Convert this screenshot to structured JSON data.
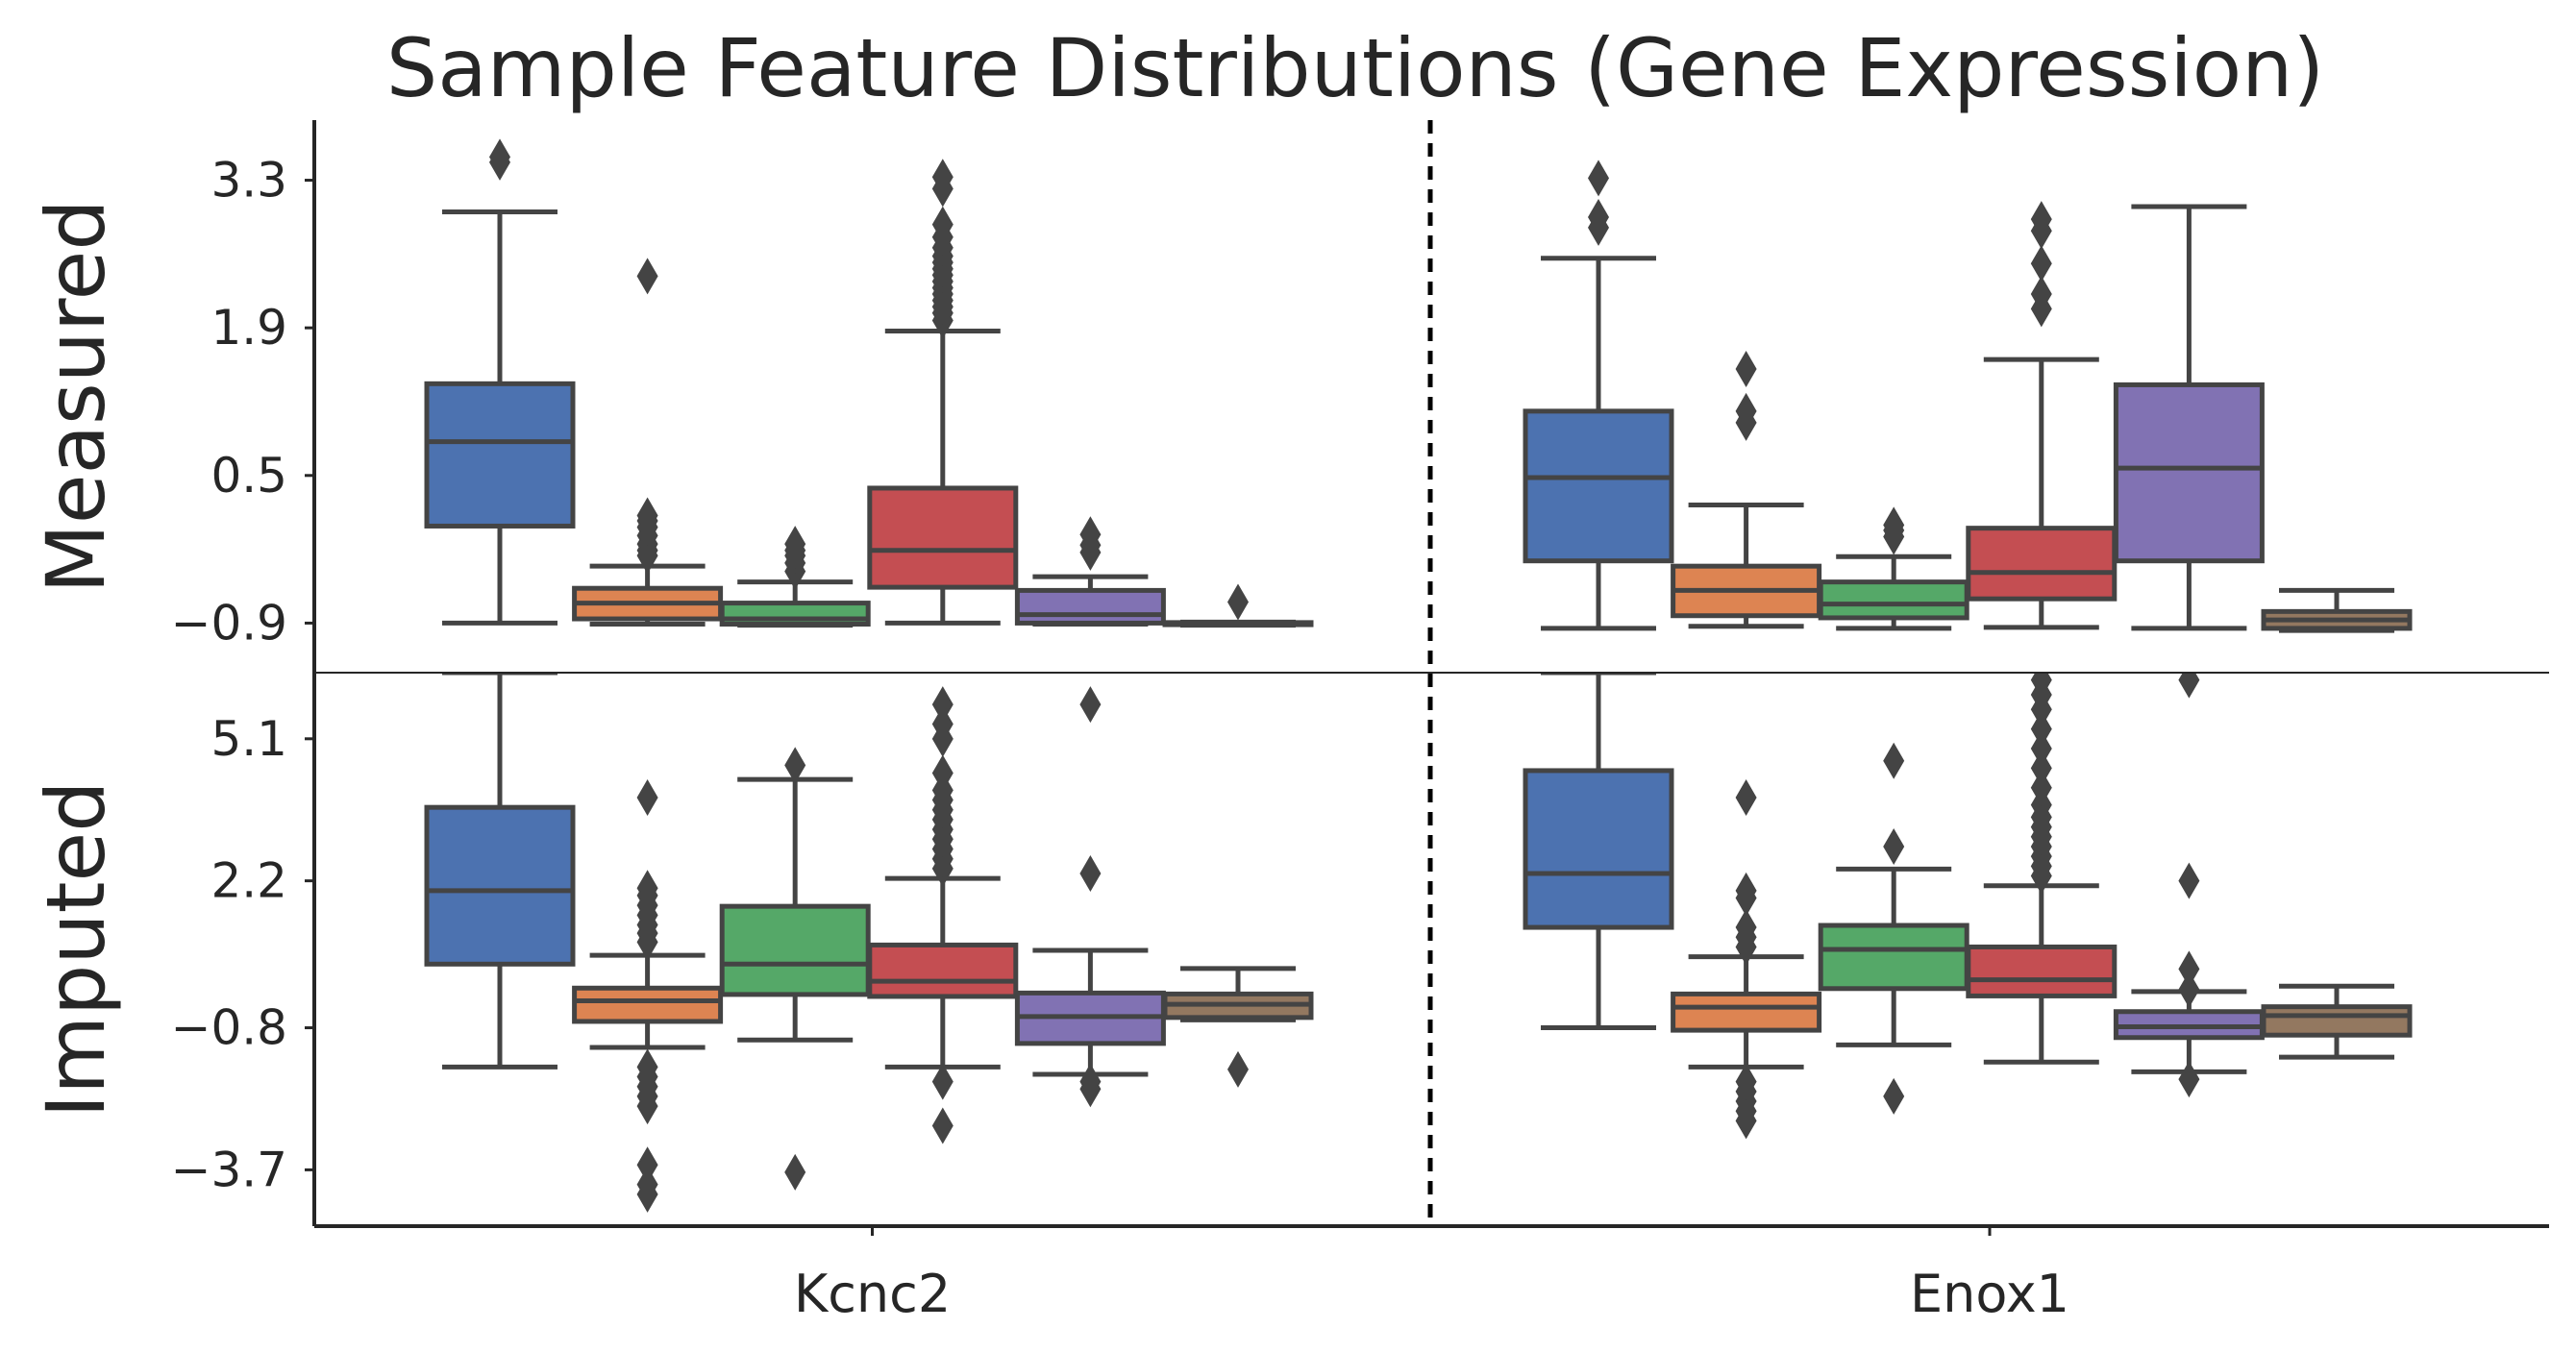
{
  "chart_data": {
    "type": "box",
    "title": "Sample Feature Distributions (Gene Expression)",
    "categories": [
      "Kcnc2",
      "Enox1"
    ],
    "box_colors": [
      "#4c72b0",
      "#dd8452",
      "#55a868",
      "#c44e52",
      "#8172b3",
      "#937860"
    ],
    "edge_color": "#444444",
    "grid": false,
    "rows": [
      {
        "label": "Measured",
        "yticks": [
          3.3,
          1.9,
          0.5,
          -0.9
        ],
        "ytick_labels": [
          "3.3",
          "1.9",
          "0.5",
          "−0.9"
        ],
        "ylim": [
          -1.37,
          3.87
        ],
        "genes": [
          {
            "gene": "Kcnc2",
            "boxes": [
              {
                "q1": 0.02,
                "median": 0.82,
                "q3": 1.37,
                "whisker_low": -0.9,
                "whisker_high": 3.0,
                "outliers": [
                  3.47,
                  3.52
                ]
              },
              {
                "q1": -0.86,
                "median": -0.71,
                "q3": -0.57,
                "whisker_low": -0.91,
                "whisker_high": -0.36,
                "outliers": [
                  -0.26,
                  -0.21,
                  -0.15,
                  -0.07,
                  0.01,
                  0.07,
                  0.12,
                  2.39
                ]
              },
              {
                "q1": -0.91,
                "median": -0.86,
                "q3": -0.71,
                "whisker_low": -0.92,
                "whisker_high": -0.51,
                "outliers": [
                  -0.41,
                  -0.33,
                  -0.26,
                  -0.21,
                  -0.15
                ]
              },
              {
                "q1": -0.56,
                "median": -0.21,
                "q3": 0.38,
                "whisker_low": -0.9,
                "whisker_high": 1.87,
                "outliers": [
                  1.97,
                  2.04,
                  2.1,
                  2.16,
                  2.22,
                  2.28,
                  2.34,
                  2.4,
                  2.46,
                  2.52,
                  2.58,
                  2.66,
                  2.76,
                  2.88,
                  3.22,
                  3.33
                ]
              },
              {
                "q1": -0.9,
                "median": -0.82,
                "q3": -0.59,
                "whisker_low": -0.91,
                "whisker_high": -0.46,
                "outliers": [
                  -0.23,
                  -0.16,
                  -0.06
                ]
              },
              {
                "q1": -0.915,
                "median": -0.905,
                "q3": -0.895,
                "whisker_low": -0.92,
                "whisker_high": -0.89,
                "outliers": [
                  -0.7
                ]
              }
            ]
          },
          {
            "gene": "Enox1",
            "boxes": [
              {
                "q1": -0.31,
                "median": 0.48,
                "q3": 1.11,
                "whisker_low": -0.95,
                "whisker_high": 2.56,
                "outliers": [
                  2.85,
                  2.95,
                  3.32
                ]
              },
              {
                "q1": -0.83,
                "median": -0.59,
                "q3": -0.36,
                "whisker_low": -0.93,
                "whisker_high": 0.22,
                "outliers": [
                  1.0,
                  1.11,
                  1.51
                ]
              },
              {
                "q1": -0.85,
                "median": -0.72,
                "q3": -0.51,
                "whisker_low": -0.95,
                "whisker_high": -0.27,
                "outliers": [
                  -0.08,
                  -0.02,
                  0.03
                ]
              },
              {
                "q1": -0.67,
                "median": -0.42,
                "q3": 0.0,
                "whisker_low": -0.94,
                "whisker_high": 1.6,
                "outliers": [
                  2.08,
                  2.22,
                  2.51,
                  2.82,
                  2.93
                ]
              },
              {
                "q1": -0.31,
                "median": 0.57,
                "q3": 1.36,
                "whisker_low": -0.95,
                "whisker_high": 3.05,
                "outliers": []
              },
              {
                "q1": -0.95,
                "median": -0.87,
                "q3": -0.79,
                "whisker_low": -0.97,
                "whisker_high": -0.59,
                "outliers": []
              }
            ]
          }
        ]
      },
      {
        "label": "Imputed",
        "yticks": [
          5.1,
          2.2,
          -0.8,
          -3.7
        ],
        "ytick_labels": [
          "5.1",
          "2.2",
          "−0.8",
          "−3.7"
        ],
        "ylim": [
          -4.85,
          6.45
        ],
        "genes": [
          {
            "gene": "Kcnc2",
            "boxes": [
              {
                "q1": 0.5,
                "median": 2.0,
                "q3": 3.7,
                "whisker_low": -1.6,
                "whisker_high": 6.45,
                "outliers": []
              },
              {
                "q1": -0.67,
                "median": -0.25,
                "q3": 0.01,
                "whisker_low": -1.2,
                "whisker_high": 0.68,
                "outliers": [
                  -4.2,
                  -4.0,
                  -3.6,
                  -2.4,
                  -2.2,
                  -2.0,
                  -1.8,
                  -1.6,
                  0.95,
                  1.13,
                  1.3,
                  1.5,
                  1.7,
                  1.9,
                  2.05,
                  3.9
                ]
              },
              {
                "q1": -0.12,
                "median": 0.5,
                "q3": 1.68,
                "whisker_low": -1.05,
                "whisker_high": 4.27,
                "outliers": [
                  -3.75,
                  4.56
                ]
              },
              {
                "q1": -0.16,
                "median": 0.15,
                "q3": 0.89,
                "whisker_low": -1.6,
                "whisker_high": 2.25,
                "outliers": [
                  -2.8,
                  -1.9,
                  2.45,
                  2.65,
                  2.85,
                  3.05,
                  3.25,
                  3.45,
                  3.65,
                  3.85,
                  4.05,
                  4.4,
                  5.1,
                  5.4,
                  5.8
                ]
              },
              {
                "q1": -1.12,
                "median": -0.57,
                "q3": -0.09,
                "whisker_low": -1.75,
                "whisker_high": 0.78,
                "outliers": [
                  -2.05,
                  -1.9,
                  2.35,
                  5.8
                ]
              },
              {
                "q1": -0.59,
                "median": -0.32,
                "q3": -0.11,
                "whisker_low": -0.64,
                "whisker_high": 0.41,
                "outliers": [
                  -1.65
                ]
              }
            ]
          },
          {
            "gene": "Enox1",
            "boxes": [
              {
                "q1": 1.25,
                "median": 2.35,
                "q3": 4.45,
                "whisker_low": -0.8,
                "whisker_high": 6.45,
                "outliers": []
              },
              {
                "q1": -0.85,
                "median": -0.38,
                "q3": -0.11,
                "whisker_low": -1.6,
                "whisker_high": 0.65,
                "outliers": [
                  -2.7,
                  -2.5,
                  -2.3,
                  -2.1,
                  -1.9,
                  0.85,
                  1.05,
                  1.25,
                  1.85,
                  2.0,
                  3.9
                ]
              },
              {
                "q1": 0.0,
                "median": 0.8,
                "q3": 1.29,
                "whisker_low": -1.15,
                "whisker_high": 2.44,
                "outliers": [
                  -2.2,
                  2.9,
                  4.65
                ]
              },
              {
                "q1": -0.15,
                "median": 0.18,
                "q3": 0.85,
                "whisker_low": -1.5,
                "whisker_high": 2.1,
                "outliers": [
                  2.3,
                  2.5,
                  2.7,
                  2.9,
                  3.1,
                  3.3,
                  3.5,
                  3.75,
                  4.1,
                  4.5,
                  4.9,
                  5.3,
                  5.7,
                  6.0,
                  6.3
                ]
              },
              {
                "q1": -1.0,
                "median": -0.78,
                "q3": -0.47,
                "whisker_low": -1.7,
                "whisker_high": -0.06,
                "outliers": [
                  -1.85,
                  -0.02,
                  0.4,
                  2.2,
                  6.3
                ]
              },
              {
                "q1": -0.95,
                "median": -0.55,
                "q3": -0.37,
                "whisker_low": -1.4,
                "whisker_high": 0.05,
                "outliers": []
              }
            ]
          }
        ]
      }
    ]
  }
}
